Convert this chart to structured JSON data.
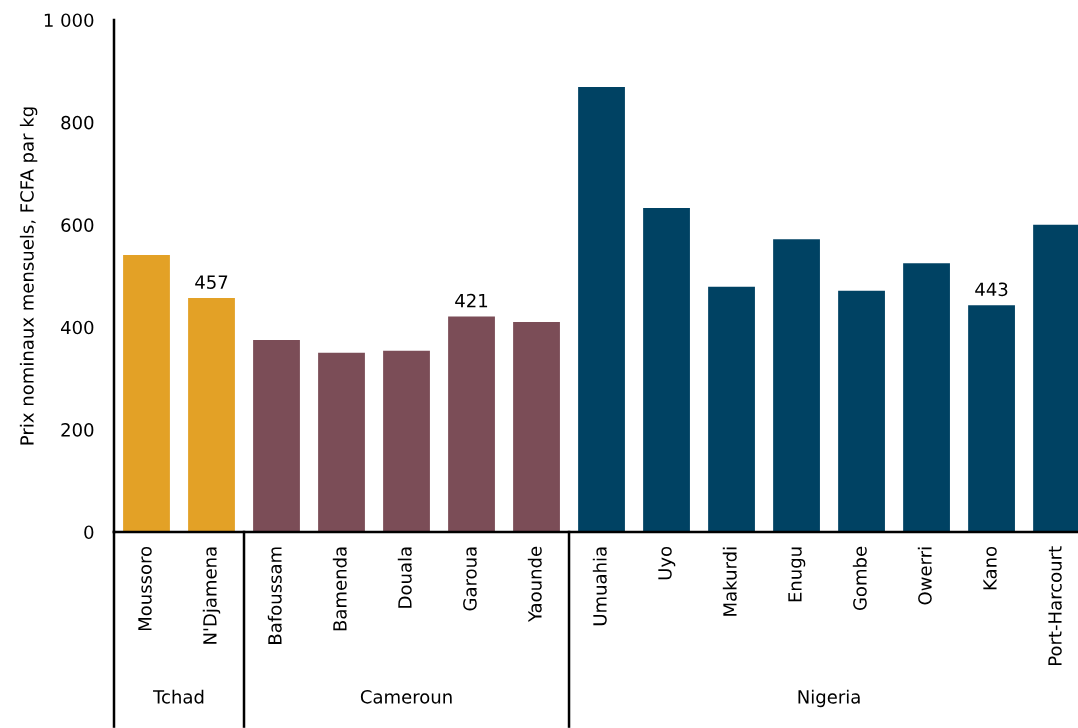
{
  "chart_data": {
    "type": "bar",
    "ylabel": "Prix nominaux mensuels, FCFA par kg",
    "categories": [
      "Moussoro",
      "N'Djamena",
      "Bafoussam",
      "Bamenda",
      "Douala",
      "Garoua",
      "Yaounde",
      "Umuahia",
      "Uyo",
      "Makurdi",
      "Enugu",
      "Gombe",
      "Owerri",
      "Kano",
      "Port-Harcourt"
    ],
    "values": [
      541,
      457,
      375,
      350,
      354,
      421,
      410,
      869,
      633,
      479,
      572,
      471,
      525,
      443,
      600
    ],
    "value_labels": [
      null,
      "457",
      null,
      null,
      null,
      "421",
      null,
      null,
      null,
      null,
      null,
      null,
      null,
      "443",
      null
    ],
    "colors": [
      "#e3a126",
      "#e3a126",
      "#7b4d57",
      "#7b4d57",
      "#7b4d57",
      "#7b4d57",
      "#7b4d57",
      "#004263",
      "#004263",
      "#004263",
      "#004263",
      "#004263",
      "#004263",
      "#004263",
      "#004263"
    ],
    "annotations": [
      "Tchad",
      "Cameroun",
      "Nigeria"
    ],
    "ylim": [
      0,
      1000
    ],
    "yticks": [
      0,
      200,
      400,
      600,
      800,
      {
        "value": 1000,
        "label": "1 000"
      }
    ],
    "grid": false,
    "legend": false
  }
}
